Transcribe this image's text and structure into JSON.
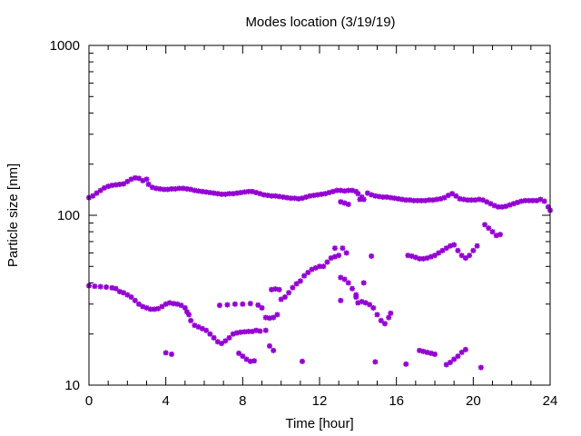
{
  "chart_data": {
    "type": "scatter",
    "title": "Modes location (3/19/19)",
    "xlabel": "Time [hour]",
    "ylabel": "Particle size [nm]",
    "xlim": [
      0,
      24
    ],
    "ylim": [
      10,
      1000
    ],
    "yscale": "log",
    "x_ticks": [
      0,
      4,
      8,
      12,
      16,
      20,
      24
    ],
    "y_ticks": [
      10,
      100,
      1000
    ],
    "grid": false,
    "marker_color": "#9400d3",
    "series": [
      {
        "points": [
          [
            0.0,
            127
          ],
          [
            0.2,
            130
          ],
          [
            0.4,
            135
          ],
          [
            0.6,
            140
          ],
          [
            0.8,
            145
          ],
          [
            1.0,
            148
          ],
          [
            1.2,
            150
          ],
          [
            1.4,
            151
          ],
          [
            1.6,
            152
          ],
          [
            1.8,
            153
          ],
          [
            2.0,
            158
          ],
          [
            2.2,
            163
          ],
          [
            2.4,
            166
          ],
          [
            2.6,
            165
          ],
          [
            2.8,
            160
          ],
          [
            3.0,
            163
          ],
          [
            3.1,
            152
          ],
          [
            3.3,
            146
          ],
          [
            3.5,
            144
          ],
          [
            3.7,
            143
          ],
          [
            3.9,
            142
          ],
          [
            4.1,
            142
          ],
          [
            4.3,
            143
          ],
          [
            4.5,
            143
          ],
          [
            4.7,
            144
          ],
          [
            4.9,
            144
          ],
          [
            5.1,
            143
          ],
          [
            5.3,
            142
          ],
          [
            5.5,
            140
          ],
          [
            5.7,
            139
          ],
          [
            5.9,
            138
          ],
          [
            6.1,
            137
          ],
          [
            6.3,
            136
          ],
          [
            6.5,
            135
          ],
          [
            6.7,
            134
          ],
          [
            6.9,
            133
          ],
          [
            7.1,
            133
          ],
          [
            7.3,
            134
          ],
          [
            7.5,
            134
          ],
          [
            7.7,
            135
          ],
          [
            7.9,
            136
          ],
          [
            8.1,
            137
          ],
          [
            8.3,
            138
          ],
          [
            8.5,
            138
          ],
          [
            8.7,
            136
          ],
          [
            8.9,
            134
          ],
          [
            9.1,
            132
          ],
          [
            9.3,
            131
          ],
          [
            9.5,
            130
          ],
          [
            9.7,
            130
          ],
          [
            9.9,
            129
          ],
          [
            10.1,
            128
          ],
          [
            10.3,
            127
          ],
          [
            10.5,
            126
          ],
          [
            10.7,
            126
          ],
          [
            10.9,
            125
          ],
          [
            11.1,
            126
          ],
          [
            11.3,
            128
          ],
          [
            11.5,
            130
          ],
          [
            11.7,
            131
          ],
          [
            11.9,
            132
          ],
          [
            12.1,
            133
          ],
          [
            12.3,
            134
          ],
          [
            12.5,
            136
          ],
          [
            12.7,
            138
          ],
          [
            12.9,
            140
          ],
          [
            13.1,
            140
          ],
          [
            13.3,
            139
          ],
          [
            13.5,
            140
          ],
          [
            13.7,
            140
          ],
          [
            13.9,
            138
          ],
          [
            14.0,
            134
          ],
          [
            14.2,
            128
          ],
          [
            14.3,
            124
          ],
          [
            14.5,
            135
          ],
          [
            14.7,
            132
          ],
          [
            14.9,
            130
          ],
          [
            15.1,
            129
          ],
          [
            15.3,
            128
          ],
          [
            15.5,
            128
          ],
          [
            15.7,
            127
          ],
          [
            15.9,
            126
          ],
          [
            16.1,
            125
          ],
          [
            16.3,
            124
          ],
          [
            16.5,
            123
          ],
          [
            16.7,
            123
          ],
          [
            16.9,
            122
          ],
          [
            17.1,
            122
          ],
          [
            17.3,
            122
          ],
          [
            17.5,
            122
          ],
          [
            17.7,
            123
          ],
          [
            17.9,
            123
          ],
          [
            18.1,
            124
          ],
          [
            18.3,
            125
          ],
          [
            18.5,
            127
          ],
          [
            18.7,
            131
          ],
          [
            18.9,
            134
          ],
          [
            19.1,
            130
          ],
          [
            19.3,
            125
          ],
          [
            19.5,
            124
          ],
          [
            19.7,
            123
          ],
          [
            19.9,
            123
          ],
          [
            20.1,
            123
          ],
          [
            20.3,
            124
          ],
          [
            20.5,
            123
          ],
          [
            20.7,
            120
          ],
          [
            20.9,
            117
          ],
          [
            21.1,
            114
          ],
          [
            21.3,
            112
          ],
          [
            21.5,
            112
          ],
          [
            21.7,
            113
          ],
          [
            21.9,
            115
          ],
          [
            22.1,
            117
          ],
          [
            22.3,
            119
          ],
          [
            22.5,
            121
          ],
          [
            22.7,
            122
          ],
          [
            22.9,
            122
          ],
          [
            23.1,
            122
          ],
          [
            23.3,
            122
          ],
          [
            23.5,
            124
          ],
          [
            23.7,
            121
          ],
          [
            23.9,
            112
          ],
          [
            24.0,
            107
          ],
          [
            13.1,
            120
          ],
          [
            13.3,
            118
          ],
          [
            13.5,
            116
          ],
          [
            14.1,
            124
          ],
          [
            0.0,
            38.5
          ],
          [
            0.3,
            38.2
          ],
          [
            0.6,
            38
          ],
          [
            0.9,
            37.8
          ],
          [
            1.2,
            37.4
          ],
          [
            1.4,
            37
          ],
          [
            1.6,
            35.5
          ],
          [
            1.8,
            35
          ],
          [
            2.0,
            34
          ],
          [
            2.2,
            33
          ],
          [
            2.4,
            31.5
          ],
          [
            2.6,
            30
          ],
          [
            2.8,
            29
          ],
          [
            3.0,
            28.5
          ],
          [
            3.2,
            28
          ],
          [
            3.4,
            28
          ],
          [
            3.6,
            28.2
          ],
          [
            3.8,
            29
          ],
          [
            4.0,
            30
          ],
          [
            4.2,
            30.5
          ],
          [
            4.4,
            30.2
          ],
          [
            4.6,
            30
          ],
          [
            4.8,
            29.5
          ],
          [
            5.0,
            28.5
          ],
          [
            5.1,
            27
          ],
          [
            5.2,
            26
          ],
          [
            5.3,
            24
          ],
          [
            5.5,
            22.5
          ],
          [
            5.7,
            22
          ],
          [
            5.9,
            21.5
          ],
          [
            6.1,
            21
          ],
          [
            6.3,
            20
          ],
          [
            6.5,
            19
          ],
          [
            6.7,
            18
          ],
          [
            6.9,
            17.6
          ],
          [
            7.1,
            18.2
          ],
          [
            7.3,
            19
          ],
          [
            7.5,
            20
          ],
          [
            7.7,
            20.3
          ],
          [
            7.9,
            20.5
          ],
          [
            8.1,
            20.6
          ],
          [
            8.3,
            20.7
          ],
          [
            8.5,
            20.7
          ],
          [
            8.7,
            21
          ],
          [
            8.9,
            20.8
          ],
          [
            6.8,
            29.5
          ],
          [
            7.2,
            29.7
          ],
          [
            7.6,
            30
          ],
          [
            8.0,
            30
          ],
          [
            8.4,
            30.2
          ],
          [
            8.8,
            29.6
          ],
          [
            9.0,
            28.5
          ],
          [
            9.2,
            25
          ],
          [
            9.4,
            24.8
          ],
          [
            9.6,
            25
          ],
          [
            9.8,
            26
          ],
          [
            9.2,
            21
          ],
          [
            9.4,
            17
          ],
          [
            9.6,
            16
          ],
          [
            10.0,
            32
          ],
          [
            10.2,
            33
          ],
          [
            10.4,
            35
          ],
          [
            10.6,
            37.5
          ],
          [
            10.8,
            39.5
          ],
          [
            11.0,
            41
          ],
          [
            11.2,
            44
          ],
          [
            11.4,
            46
          ],
          [
            11.6,
            48
          ],
          [
            11.8,
            49
          ],
          [
            12.0,
            50
          ],
          [
            12.2,
            50
          ],
          [
            12.4,
            53
          ],
          [
            12.6,
            56
          ],
          [
            12.8,
            57
          ],
          [
            13.0,
            58
          ],
          [
            12.8,
            64
          ],
          [
            13.2,
            64
          ],
          [
            13.4,
            60
          ],
          [
            9.5,
            36.5
          ],
          [
            9.7,
            36.8
          ],
          [
            9.9,
            36.5
          ],
          [
            13.1,
            43
          ],
          [
            13.3,
            42
          ],
          [
            13.5,
            40
          ],
          [
            13.7,
            37
          ],
          [
            13.9,
            34
          ],
          [
            14.0,
            30.5
          ],
          [
            14.2,
            31
          ],
          [
            14.4,
            30.5
          ],
          [
            14.6,
            29.8
          ],
          [
            14.8,
            28.5
          ],
          [
            15.0,
            26
          ],
          [
            15.2,
            24
          ],
          [
            15.4,
            23
          ],
          [
            15.6,
            25
          ],
          [
            15.7,
            26.5
          ],
          [
            13.9,
            33
          ],
          [
            13.1,
            31.5
          ],
          [
            14.7,
            57.5
          ],
          [
            14.3,
            40
          ],
          [
            16.6,
            58
          ],
          [
            16.8,
            57.5
          ],
          [
            17.0,
            56.5
          ],
          [
            17.2,
            55.5
          ],
          [
            17.4,
            55.5
          ],
          [
            17.6,
            56
          ],
          [
            17.8,
            57
          ],
          [
            18.0,
            58
          ],
          [
            18.2,
            60
          ],
          [
            18.4,
            62
          ],
          [
            18.6,
            64
          ],
          [
            18.8,
            66
          ],
          [
            19.0,
            67
          ],
          [
            19.2,
            62
          ],
          [
            19.4,
            58
          ],
          [
            19.6,
            56
          ],
          [
            19.8,
            58
          ],
          [
            20.0,
            62
          ],
          [
            20.2,
            66
          ],
          [
            20.6,
            88
          ],
          [
            20.8,
            84
          ],
          [
            21.0,
            80
          ],
          [
            21.2,
            76
          ],
          [
            21.4,
            77
          ],
          [
            4.0,
            15.5
          ],
          [
            4.3,
            15.2
          ],
          [
            7.8,
            15.4
          ],
          [
            8.0,
            14.8
          ],
          [
            8.2,
            14.2
          ],
          [
            8.4,
            13.8
          ],
          [
            8.6,
            13.9
          ],
          [
            11.1,
            13.8
          ],
          [
            14.9,
            13.7
          ],
          [
            16.5,
            13.3
          ],
          [
            17.2,
            16
          ],
          [
            17.4,
            15.8
          ],
          [
            17.6,
            15.6
          ],
          [
            17.8,
            15.4
          ],
          [
            18.0,
            15.2
          ],
          [
            18.6,
            13.2
          ],
          [
            18.8,
            13.6
          ],
          [
            19.0,
            14.2
          ],
          [
            19.2,
            14.8
          ],
          [
            19.4,
            15.6
          ],
          [
            19.6,
            16.2
          ],
          [
            20.4,
            12.7
          ]
        ]
      }
    ]
  }
}
